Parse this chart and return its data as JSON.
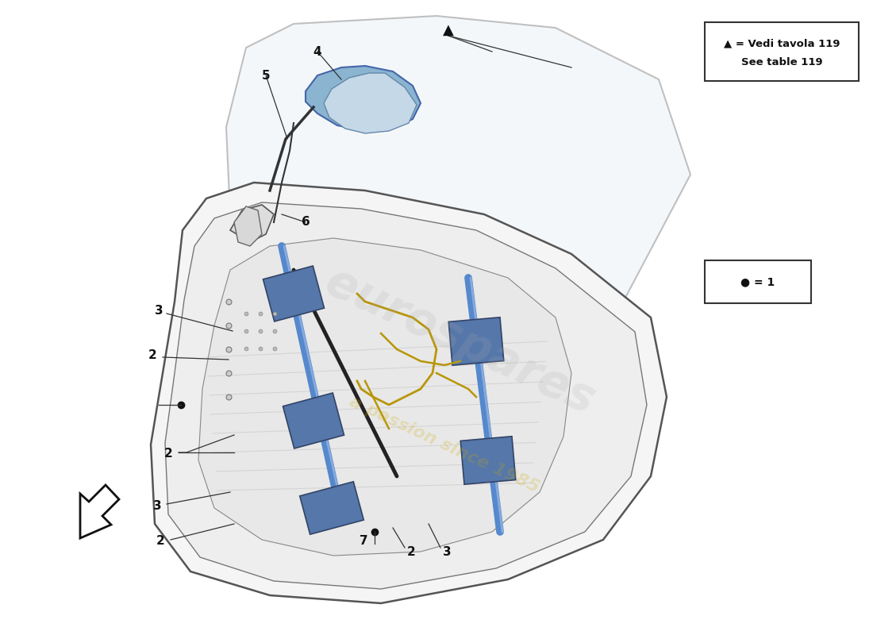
{
  "bg_color": "#ffffff",
  "legend_box": {
    "line1": "▲ = Vedi tavola 119",
    "line2": "See table 119"
  },
  "watermark1": {
    "text": "eurospares",
    "color": "#aaaaaa",
    "alpha": 0.18,
    "fontsize": 42
  },
  "watermark2": {
    "text": "a passion since 1985",
    "color": "#ccaa00",
    "alpha": 0.22,
    "fontsize": 16
  }
}
